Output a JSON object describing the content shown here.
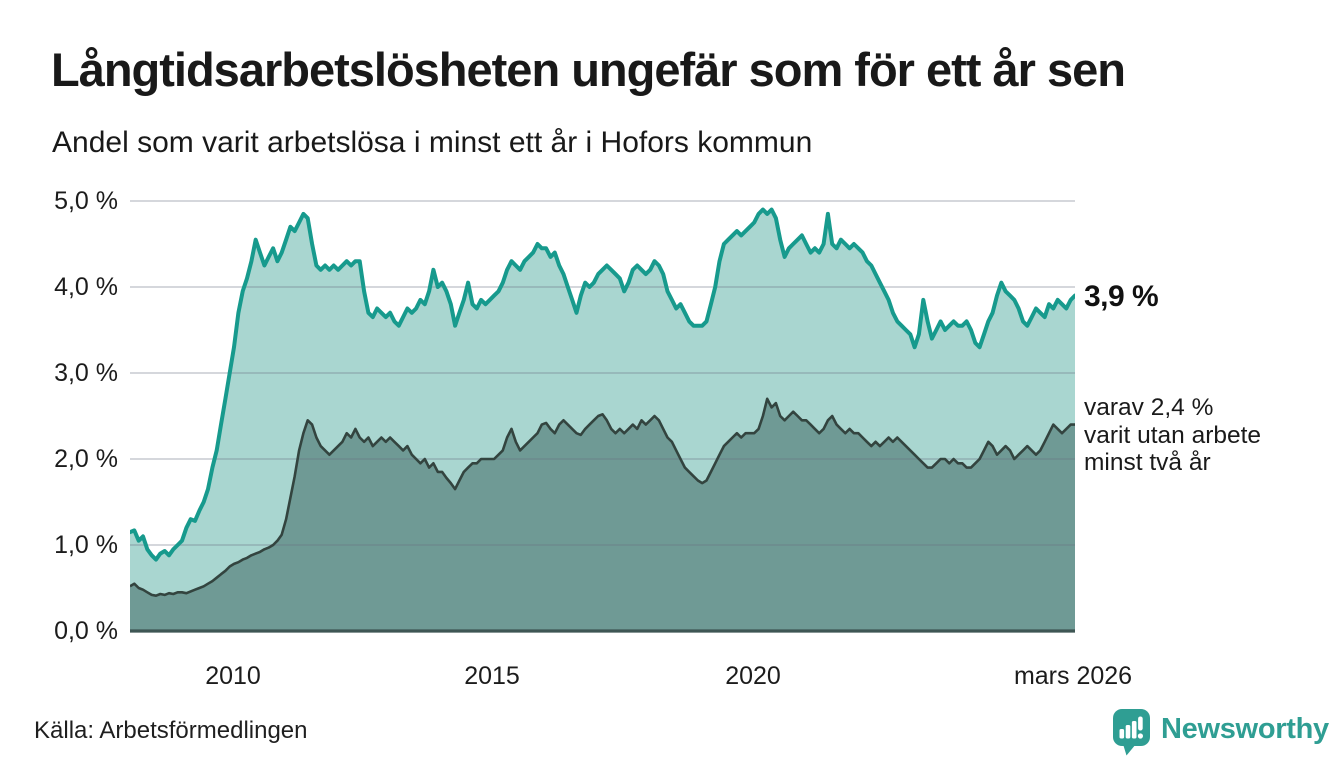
{
  "chart_data": {
    "type": "area",
    "title": "Långtidsarbetslösheten ungefär som för ett år sen",
    "subtitle": "Andel som varit arbetslösa i minst ett år i Hofors kommun",
    "unit": "%",
    "x_start": "2008-01",
    "x_end": "2026-03",
    "frequency": "monthly",
    "x_tick_labels": [
      "2010",
      "2015",
      "2020",
      "mars 2026"
    ],
    "y_tick_labels": [
      "5,0 %",
      "4,0 %",
      "3,0 %",
      "2,0 %",
      "1,0 %",
      "0,0 %"
    ],
    "ylim": [
      0,
      5
    ],
    "grid": "horizontal",
    "source": "Källa: Arbetsförmedlingen",
    "series": [
      {
        "name": "Andel arbetslösa minst ett år",
        "line_color": "#179a8d",
        "fill_color": "#a9d6d0",
        "latest_value": 3.9,
        "end_value_label": "3,9 %",
        "values": [
          1.15,
          1.17,
          1.05,
          1.1,
          0.95,
          0.88,
          0.83,
          0.9,
          0.93,
          0.88,
          0.95,
          1.0,
          1.05,
          1.2,
          1.3,
          1.28,
          1.4,
          1.5,
          1.65,
          1.9,
          2.1,
          2.4,
          2.7,
          3.0,
          3.3,
          3.7,
          3.95,
          4.1,
          4.3,
          4.55,
          4.4,
          4.25,
          4.35,
          4.45,
          4.3,
          4.4,
          4.55,
          4.7,
          4.65,
          4.75,
          4.85,
          4.8,
          4.5,
          4.25,
          4.2,
          4.25,
          4.2,
          4.25,
          4.2,
          4.25,
          4.3,
          4.25,
          4.3,
          4.3,
          3.95,
          3.7,
          3.65,
          3.75,
          3.7,
          3.65,
          3.7,
          3.6,
          3.55,
          3.65,
          3.75,
          3.7,
          3.75,
          3.85,
          3.8,
          3.95,
          4.2,
          4.0,
          4.05,
          3.95,
          3.8,
          3.55,
          3.7,
          3.85,
          4.05,
          3.8,
          3.75,
          3.85,
          3.8,
          3.85,
          3.9,
          3.95,
          4.05,
          4.2,
          4.3,
          4.25,
          4.2,
          4.3,
          4.35,
          4.4,
          4.5,
          4.45,
          4.45,
          4.35,
          4.4,
          4.25,
          4.15,
          4.0,
          3.85,
          3.7,
          3.9,
          4.05,
          4.0,
          4.05,
          4.15,
          4.2,
          4.25,
          4.2,
          4.15,
          4.1,
          3.95,
          4.05,
          4.2,
          4.25,
          4.2,
          4.15,
          4.2,
          4.3,
          4.25,
          4.15,
          3.95,
          3.85,
          3.75,
          3.8,
          3.7,
          3.6,
          3.55,
          3.55,
          3.55,
          3.6,
          3.8,
          4.0,
          4.3,
          4.5,
          4.55,
          4.6,
          4.65,
          4.6,
          4.65,
          4.7,
          4.75,
          4.85,
          4.9,
          4.85,
          4.9,
          4.8,
          4.55,
          4.35,
          4.45,
          4.5,
          4.55,
          4.6,
          4.5,
          4.4,
          4.45,
          4.4,
          4.5,
          4.85,
          4.5,
          4.45,
          4.55,
          4.5,
          4.45,
          4.5,
          4.45,
          4.4,
          4.3,
          4.25,
          4.15,
          4.05,
          3.95,
          3.85,
          3.7,
          3.6,
          3.55,
          3.5,
          3.45,
          3.3,
          3.45,
          3.85,
          3.6,
          3.4,
          3.5,
          3.6,
          3.5,
          3.55,
          3.6,
          3.55,
          3.55,
          3.6,
          3.5,
          3.35,
          3.3,
          3.45,
          3.6,
          3.7,
          3.9,
          4.05,
          3.95,
          3.9,
          3.85,
          3.75,
          3.6,
          3.55,
          3.65,
          3.75,
          3.7,
          3.65,
          3.8,
          3.75,
          3.85,
          3.8,
          3.75,
          3.85,
          3.9
        ]
      },
      {
        "name": "Andel arbetslösa minst två år",
        "line_color": "#33443f",
        "fill_color": "#6f9a95",
        "latest_value": 2.4,
        "end_label_lines": [
          "varav 2,4 %",
          "varit utan arbete",
          "minst två år"
        ],
        "values": [
          0.52,
          0.55,
          0.5,
          0.48,
          0.45,
          0.42,
          0.41,
          0.43,
          0.42,
          0.44,
          0.43,
          0.45,
          0.45,
          0.44,
          0.46,
          0.48,
          0.5,
          0.52,
          0.55,
          0.58,
          0.62,
          0.66,
          0.7,
          0.75,
          0.78,
          0.8,
          0.83,
          0.85,
          0.88,
          0.9,
          0.92,
          0.95,
          0.97,
          1.0,
          1.05,
          1.12,
          1.3,
          1.55,
          1.8,
          2.1,
          2.3,
          2.45,
          2.4,
          2.25,
          2.15,
          2.1,
          2.05,
          2.1,
          2.15,
          2.2,
          2.3,
          2.25,
          2.35,
          2.25,
          2.2,
          2.25,
          2.15,
          2.2,
          2.25,
          2.2,
          2.25,
          2.2,
          2.15,
          2.1,
          2.15,
          2.05,
          2.0,
          1.95,
          2.0,
          1.9,
          1.95,
          1.85,
          1.85,
          1.78,
          1.72,
          1.65,
          1.75,
          1.85,
          1.9,
          1.95,
          1.95,
          2.0,
          2.0,
          2.0,
          2.0,
          2.05,
          2.1,
          2.25,
          2.35,
          2.2,
          2.1,
          2.15,
          2.2,
          2.25,
          2.3,
          2.4,
          2.42,
          2.35,
          2.3,
          2.4,
          2.45,
          2.4,
          2.35,
          2.3,
          2.28,
          2.35,
          2.4,
          2.45,
          2.5,
          2.52,
          2.45,
          2.35,
          2.3,
          2.35,
          2.3,
          2.35,
          2.4,
          2.35,
          2.45,
          2.4,
          2.45,
          2.5,
          2.45,
          2.35,
          2.25,
          2.2,
          2.1,
          2.0,
          1.9,
          1.85,
          1.8,
          1.75,
          1.72,
          1.75,
          1.85,
          1.95,
          2.05,
          2.15,
          2.2,
          2.25,
          2.3,
          2.25,
          2.3,
          2.3,
          2.3,
          2.35,
          2.5,
          2.7,
          2.6,
          2.65,
          2.5,
          2.45,
          2.5,
          2.55,
          2.5,
          2.45,
          2.45,
          2.4,
          2.35,
          2.3,
          2.35,
          2.45,
          2.5,
          2.4,
          2.35,
          2.3,
          2.35,
          2.3,
          2.3,
          2.25,
          2.2,
          2.15,
          2.2,
          2.15,
          2.2,
          2.25,
          2.2,
          2.25,
          2.2,
          2.15,
          2.1,
          2.05,
          2.0,
          1.95,
          1.9,
          1.9,
          1.95,
          2.0,
          2.0,
          1.95,
          2.0,
          1.95,
          1.95,
          1.9,
          1.9,
          1.95,
          2.0,
          2.1,
          2.2,
          2.15,
          2.05,
          2.1,
          2.15,
          2.1,
          2.0,
          2.05,
          2.1,
          2.15,
          2.1,
          2.05,
          2.1,
          2.2,
          2.3,
          2.4,
          2.35,
          2.3,
          2.35,
          2.4,
          2.4
        ]
      }
    ]
  },
  "branding": {
    "logo_text": "Newsworthy",
    "logo_color": "#2f9e93"
  }
}
